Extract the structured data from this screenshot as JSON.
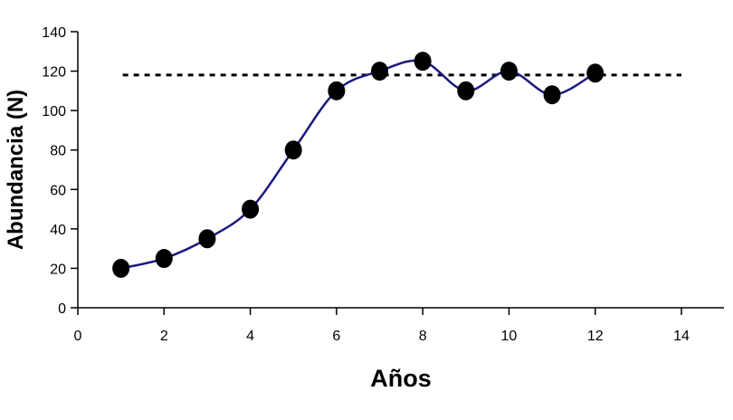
{
  "chart_data": {
    "type": "line",
    "title": "",
    "xlabel": "Años",
    "ylabel": "Abundancia (N)",
    "xlim": [
      0,
      14
    ],
    "ylim": [
      0,
      140
    ],
    "xticks": [
      0,
      2,
      4,
      6,
      8,
      10,
      12,
      14
    ],
    "yticks": [
      0,
      20,
      40,
      60,
      80,
      100,
      120,
      140
    ],
    "grid": false,
    "series": [
      {
        "style": "smooth line with circle markers",
        "color": "#1a1a80",
        "marker_color": "#000000",
        "points": [
          {
            "x": 1,
            "y": 20
          },
          {
            "x": 2,
            "y": 25
          },
          {
            "x": 3,
            "y": 35
          },
          {
            "x": 4,
            "y": 50
          },
          {
            "x": 5,
            "y": 80
          },
          {
            "x": 6,
            "y": 110
          },
          {
            "x": 7,
            "y": 120
          },
          {
            "x": 8,
            "y": 125
          },
          {
            "x": 9,
            "y": 110
          },
          {
            "x": 10,
            "y": 120
          },
          {
            "x": 11,
            "y": 108
          },
          {
            "x": 12,
            "y": 119
          }
        ]
      }
    ],
    "reference_line": {
      "style": "dotted horizontal",
      "color": "#000000",
      "y": 118,
      "x_range": [
        1,
        14
      ]
    }
  }
}
